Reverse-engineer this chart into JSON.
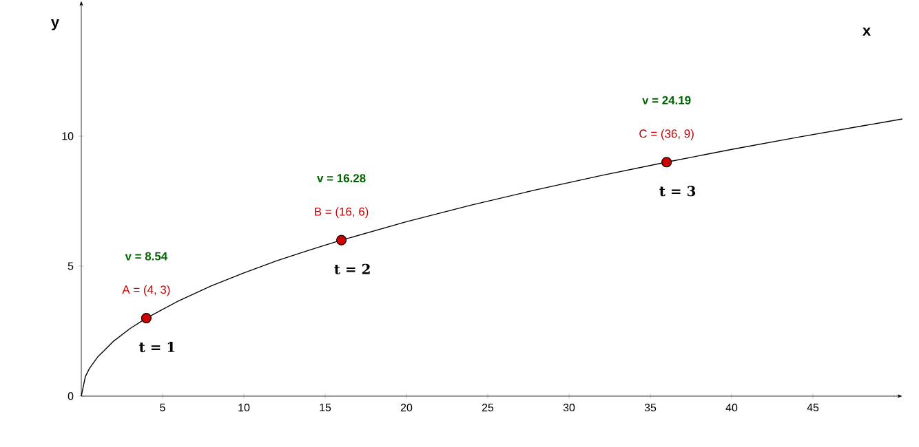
{
  "chart_data": {
    "type": "line",
    "xlabel": "x",
    "ylabel": "y",
    "xlim": [
      0,
      50.5
    ],
    "ylim": [
      0,
      15.2
    ],
    "xticks": [
      5,
      10,
      15,
      20,
      25,
      30,
      35,
      40,
      45
    ],
    "yticks": [
      0,
      5,
      10
    ],
    "grid": false,
    "series": [
      {
        "color": "#000000",
        "marker": "none",
        "x": [
          0,
          0.25,
          0.5,
          1,
          2,
          3,
          4,
          6,
          8,
          10,
          12,
          14,
          16,
          20,
          24,
          28,
          32,
          36,
          40,
          44,
          48,
          50.5
        ],
        "values": [
          0,
          0.75,
          1.06,
          1.5,
          2.12,
          2.6,
          3,
          3.67,
          4.24,
          4.74,
          5.2,
          5.61,
          6,
          6.71,
          7.35,
          7.94,
          8.49,
          9,
          9.49,
          9.95,
          10.39,
          10.66
        ]
      },
      {
        "type": "scatter",
        "color": "#cc0000",
        "marker": "circle",
        "x": [
          4,
          16,
          36
        ],
        "values": [
          3,
          6,
          9
        ]
      }
    ],
    "annotations": [
      {
        "text": "A = (4, 3)",
        "x": 4,
        "y": 3
      },
      "**v = 8.54**",
      {
        "text": "**t = 1**",
        "x": 4,
        "y": 3
      },
      {
        "text": "B = (16, 6)",
        "x": 16,
        "y": 6
      },
      "**v = 16.28**",
      {
        "text": "**t = 2**",
        "x": 16,
        "y": 6
      },
      {
        "text": "C = (36, 9)",
        "x": 36,
        "y": 9
      },
      "**v = 24.19**",
      {
        "text": "**t = 3**",
        "x": 36,
        "y": 9
      }
    ]
  }
}
